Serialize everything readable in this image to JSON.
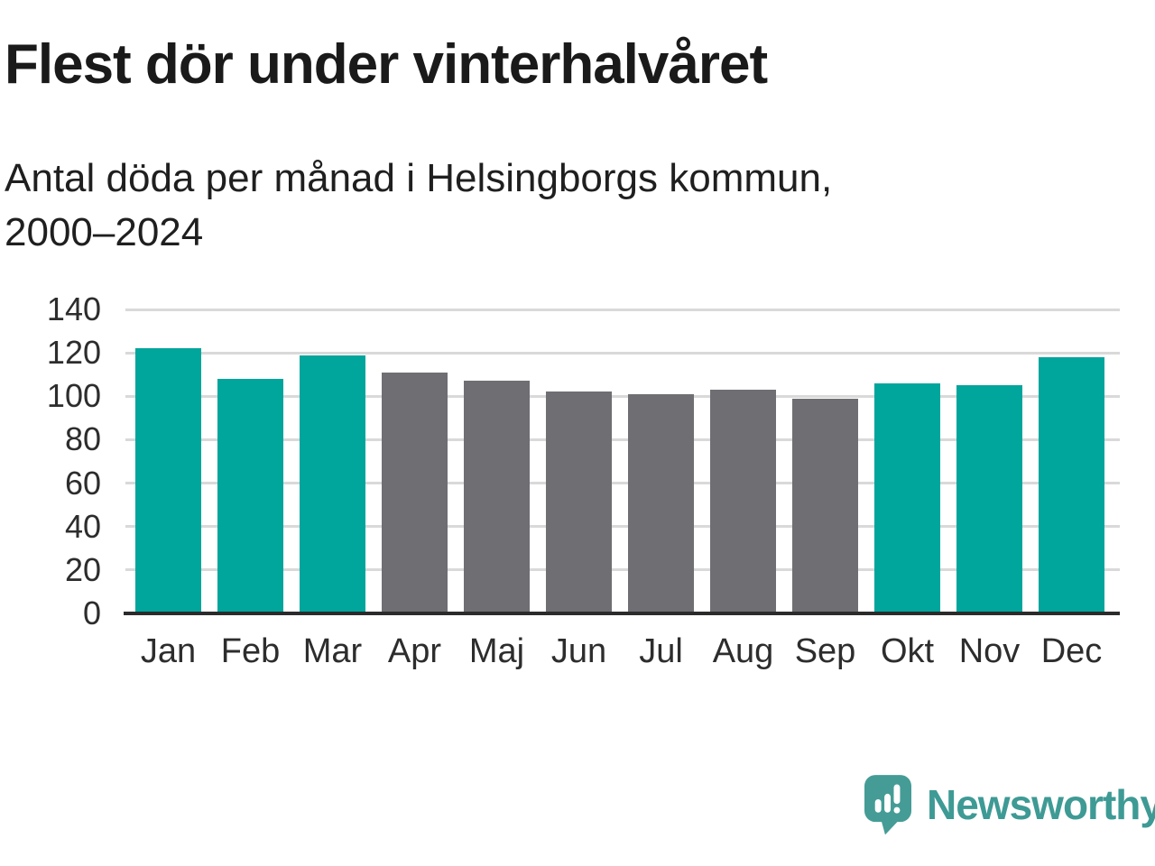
{
  "title": "Flest dör under vinterhalvåret",
  "subtitle_lines": [
    "Antal döda per månad i Helsingborgs kommun,",
    "2000–2024"
  ],
  "chart_data": {
    "type": "bar",
    "title": "Flest dör under vinterhalvåret",
    "subtitle": "Antal döda per månad i Helsingborgs kommun, 2000–2024",
    "categories": [
      "Jan",
      "Feb",
      "Mar",
      "Apr",
      "Maj",
      "Jun",
      "Jul",
      "Aug",
      "Sep",
      "Okt",
      "Nov",
      "Dec"
    ],
    "values": [
      122,
      108,
      119,
      111,
      107,
      102,
      101,
      103,
      99,
      106,
      105,
      118
    ],
    "bar_colors": [
      "#00a59c",
      "#00a59c",
      "#00a59c",
      "#6e6e73",
      "#6e6e73",
      "#6e6e73",
      "#6e6e73",
      "#6e6e73",
      "#6e6e73",
      "#00a59c",
      "#00a59c",
      "#00a59c"
    ],
    "xlabel": "",
    "ylabel": "",
    "ylim": [
      0,
      140
    ],
    "yticks": [
      0,
      20,
      40,
      60,
      80,
      100,
      120,
      140
    ],
    "grid": true,
    "legend": "none",
    "color_meaning": {
      "#00a59c": "winter-half-year months (Okt–Mar)",
      "#6e6e73": "summer-half-year months (Apr–Sep)"
    }
  },
  "logo": {
    "name": "Newsworthy",
    "icon": "newsworthy-speech-bubble-bar-chart-icon",
    "text_color": "#3e9a95",
    "icon_color": "#459c96"
  },
  "colors": {
    "accent_teal": "#00a59c",
    "neutral_gray": "#6e6e73",
    "gridline": "#d9d9d9",
    "axis": "#2b2b2b",
    "text": "#1a1a1a",
    "background": "#ffffff"
  }
}
